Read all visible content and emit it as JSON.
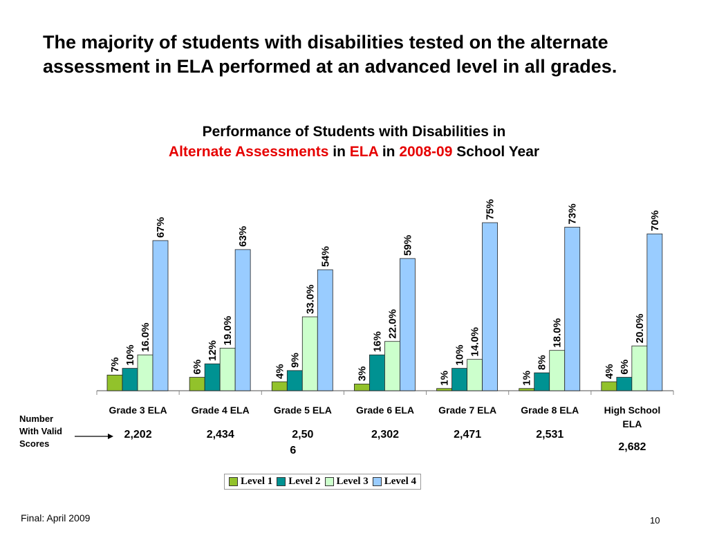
{
  "headline": "The majority of students with disabilities tested on the alternate assessment in ELA performed at an advanced level in all grades.",
  "chart_title": {
    "line1": "Performance of Students with Disabilities in",
    "part_a": "Alternate Assessments",
    "part_b": " in ",
    "part_c": "ELA",
    "part_d": " in ",
    "part_e": "2008-09",
    "part_f": " School Year"
  },
  "side_note": "Number With Valid Scores",
  "footer_left": "Final: April 2009",
  "page_number": "10",
  "colors": {
    "accent_red": "#e60000"
  },
  "chart_data": {
    "type": "bar",
    "categories": [
      "Grade 3 ELA",
      "Grade 4 ELA",
      "Grade 5 ELA",
      "Grade 6 ELA",
      "Grade 7 ELA",
      "Grade 8 ELA",
      "High School ELA"
    ],
    "counts": [
      "2,202",
      "2,434",
      "2,506",
      "2,302",
      "2,471",
      "2,531",
      "2,682"
    ],
    "ylim": [
      0,
      100
    ],
    "grid": false,
    "legend_position": "bottom",
    "series": [
      {
        "name": "Level 1",
        "color": "#92c22b",
        "values": [
          7,
          6,
          4,
          3,
          1,
          1,
          4
        ],
        "labels": [
          "7%",
          "6%",
          "4%",
          "3%",
          "1%",
          "1%",
          "4%"
        ]
      },
      {
        "name": "Level 2",
        "color": "#009292",
        "values": [
          10,
          12,
          9,
          16,
          10,
          8,
          6
        ],
        "labels": [
          "10%",
          "12%",
          "9%",
          "16%",
          "10%",
          "8%",
          "6%"
        ]
      },
      {
        "name": "Level 3",
        "color": "#ccffcc",
        "values": [
          16,
          19,
          33,
          22,
          14,
          18,
          20
        ],
        "labels": [
          "16.0%",
          "19.0%",
          "33.0%",
          "22.0%",
          "14.0%",
          "18.0%",
          "20.0%"
        ]
      },
      {
        "name": "Level 4",
        "color": "#99ccff",
        "values": [
          67,
          63,
          54,
          59,
          75,
          73,
          70
        ],
        "labels": [
          "67%",
          "63%",
          "54%",
          "59%",
          "75%",
          "73%",
          "70%"
        ]
      }
    ]
  }
}
